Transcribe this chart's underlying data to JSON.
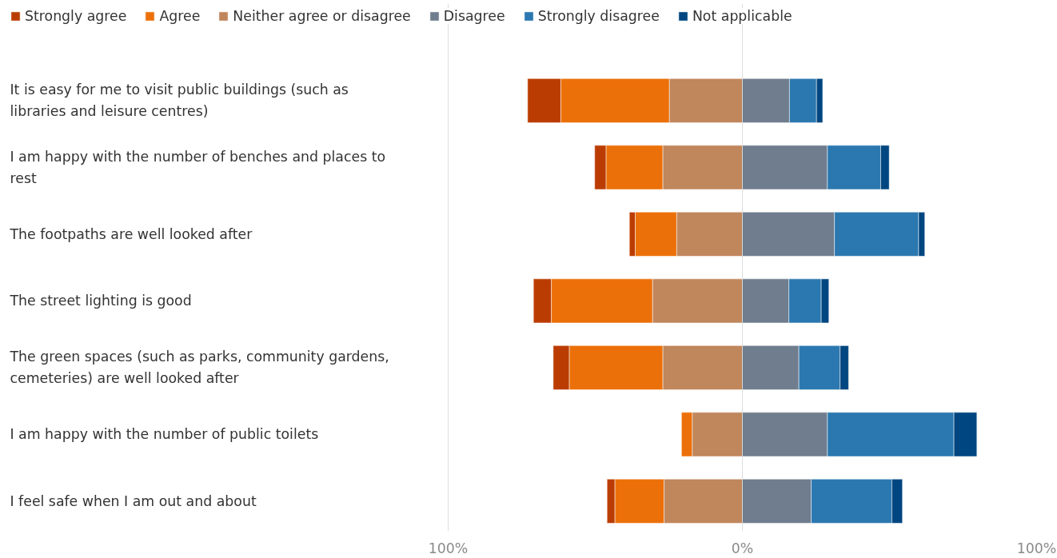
{
  "chart_data": {
    "type": "bar",
    "orientation": "horizontal",
    "categories": [
      "It is easy for me to visit public buildings (such as libraries and leisure centres)",
      "I am happy with the number of benches and places to rest",
      "The footpaths are well looked after",
      "The street lighting is good",
      "The green spaces (such as parks, community gardens, cemeteries) are well looked after",
      "I am happy with the number of public toilets",
      "I feel safe when I am out and about"
    ],
    "series": [
      {
        "name": "Strongly agree",
        "color": "#bb3c02",
        "values": [
          11.3,
          3.9,
          2.0,
          6.1,
          5.5,
          null,
          2.7
        ],
        "base": [
          -73.0,
          -50.2,
          -38.4,
          -71.0,
          -64.3,
          null,
          -46.0
        ]
      },
      {
        "name": "Agree",
        "color": "#ec7009",
        "values": [
          36.9,
          19.3,
          14.1,
          34.4,
          31.8,
          3.7,
          16.7
        ],
        "base": [
          -61.7,
          -46.3,
          -36.4,
          -64.9,
          -58.8,
          -20.7,
          -43.3
        ]
      },
      {
        "name": "Neither agree or disagree",
        "color": "#c0865c",
        "values": [
          24.8,
          27.0,
          22.3,
          30.5,
          27.0,
          17.0,
          26.6
        ],
        "base": [
          -24.8,
          -27.0,
          -22.3,
          -30.5,
          -27.0,
          -17.0,
          -26.6
        ]
      },
      {
        "name": "Disagree",
        "color": "#6f7d8e",
        "values": [
          16.0,
          28.9,
          31.3,
          15.8,
          19.2,
          28.9,
          23.4
        ],
        "base": [
          0,
          0,
          0,
          0,
          0,
          0,
          0
        ]
      },
      {
        "name": "Strongly disagree",
        "color": "#2b78b0",
        "values": [
          9.2,
          18.1,
          28.6,
          11.0,
          14.0,
          43.0,
          27.4
        ],
        "base": [
          16.0,
          28.9,
          31.3,
          15.8,
          19.2,
          28.9,
          23.4
        ]
      },
      {
        "name": "Not applicable",
        "color": "#004680",
        "values": [
          2.1,
          2.9,
          2.1,
          2.6,
          2.9,
          7.8,
          3.6
        ],
        "base": [
          25.2,
          47.0,
          59.9,
          26.8,
          33.2,
          71.9,
          50.8
        ]
      }
    ],
    "xlim": [
      -100,
      100
    ],
    "xticks": [
      {
        "value": -100,
        "label": "100%"
      },
      {
        "value": 0,
        "label": "0%"
      },
      {
        "value": 100,
        "label": "100%"
      }
    ],
    "grid": "x",
    "legend": "top"
  }
}
